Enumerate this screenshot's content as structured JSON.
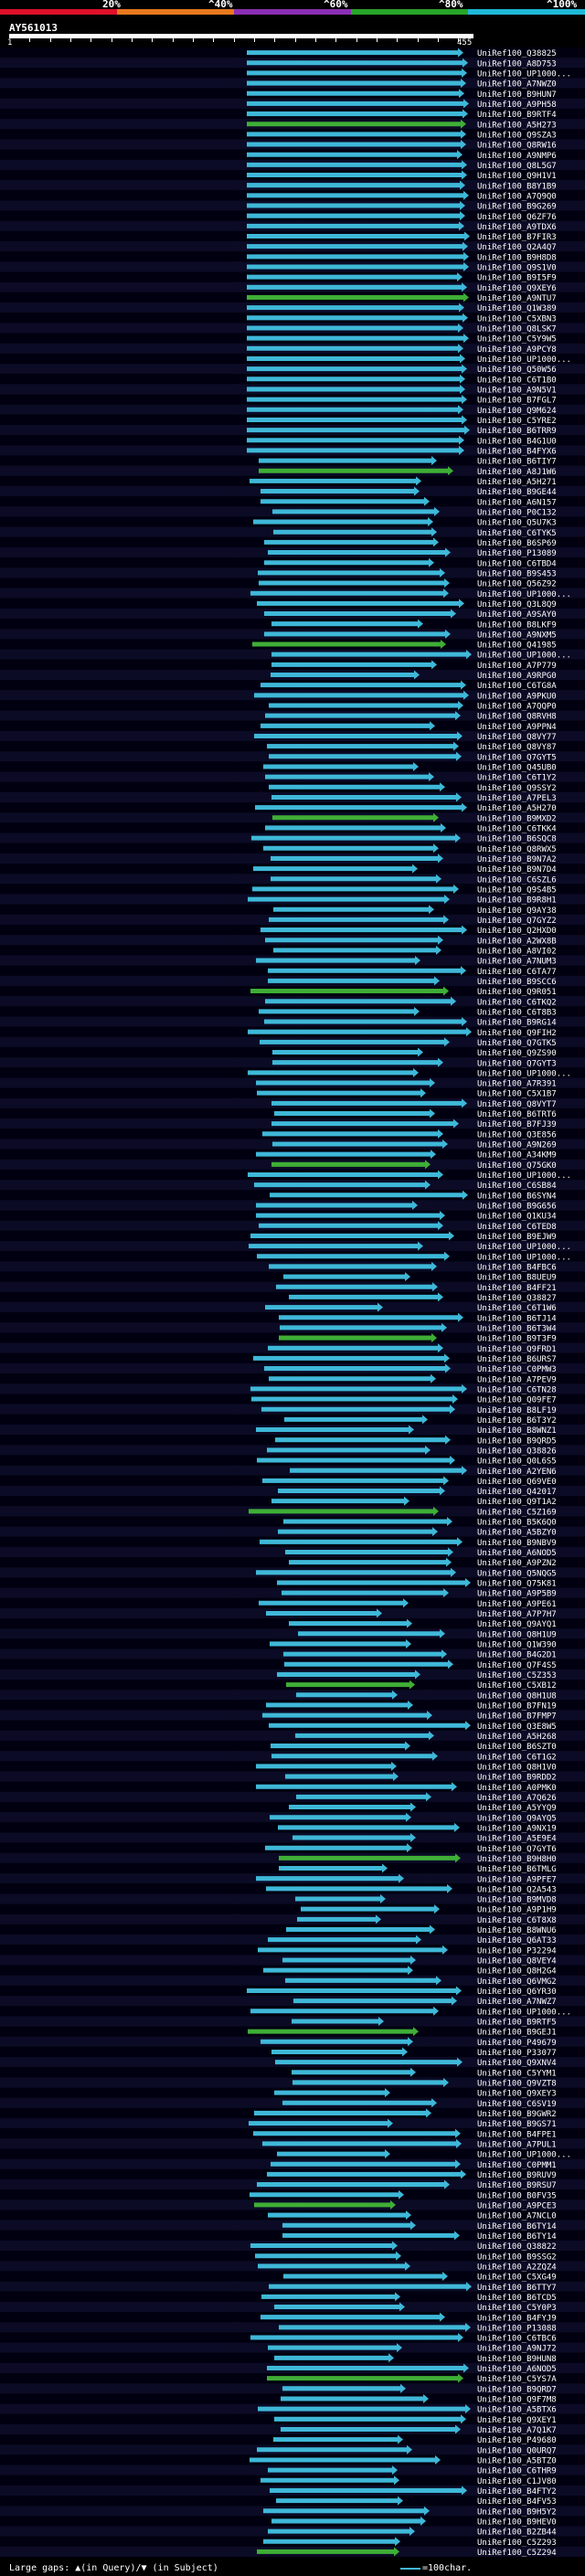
{
  "query": {
    "name": "AY561013",
    "start": "1",
    "end": "455"
  },
  "legend": {
    "labels": [
      "20%",
      "^40%",
      "^60%",
      "^80%",
      "^100%"
    ],
    "colors": [
      "#e0102a",
      "#e8781e",
      "#8b2fb5",
      "#28a42a",
      "#1fb8d8"
    ]
  },
  "colors": {
    "cyan": "#3fb8d8",
    "green": "#3fae36",
    "query": "#ffffff",
    "row_dark": "#000010",
    "row_light": "#0b0b26",
    "grid": "#33334d"
  },
  "footer": {
    "gaps_label": "Large gaps: ▲(in Query)/▼ (in Subject)",
    "scale_label": "=100char."
  },
  "hits": [
    "UniRef100_Q38825",
    "UniRef100_A8D753",
    "UniRef100_UP1000...",
    "UniRef100_A7NWZ0",
    "UniRef100_B9HUN7",
    "UniRef100_A9PH58",
    "UniRef100_B9RTF4",
    "UniRef100_A5H273",
    "UniRef100_Q9SZA3",
    "UniRef100_Q8RW16",
    "UniRef100_A9NMP6",
    "UniRef100_Q8L5G7",
    "UniRef100_Q9H1V1",
    "UniRef100_B8Y1B9",
    "UniRef100_A7Q9Q0",
    "UniRef100_B9G269",
    "UniRef100_Q6ZF76",
    "UniRef100_A9TDX6",
    "UniRef100_B7FIR3",
    "UniRef100_Q2A4Q7",
    "UniRef100_B9H8D8",
    "UniRef100_Q9S1V0",
    "UniRef100_B9I5F9",
    "UniRef100_Q9XEY6",
    "UniRef100_A9NTU7",
    "UniRef100_Q1W389",
    "UniRef100_C5XBN3",
    "UniRef100_Q8LSK7",
    "UniRef100_C5Y9W5",
    "UniRef100_A9PCY8",
    "UniRef100_UP1000...",
    "UniRef100_Q50W56",
    "UniRef100_C6T1B0",
    "UniRef100_A9N5V1",
    "UniRef100_B7FGL7",
    "UniRef100_Q9M624",
    "UniRef100_C5YRE2",
    "UniRef100_B6TRR9",
    "UniRef100_B4G1U0",
    "UniRef100_B4FYX6",
    "UniRef100_B6TIY7",
    "UniRef100_A8J1W6",
    "UniRef100_A5H271",
    "UniRef100_B9GE44",
    "UniRef100_A6N157",
    "UniRef100_P0C132",
    "UniRef100_Q5U7K3",
    "UniRef100_C6TYK5",
    "UniRef100_B6SP69",
    "UniRef100_P13089",
    "UniRef100_C6TBD4",
    "UniRef100_B9S453",
    "UniRef100_Q56Z92",
    "UniRef100_UP1000...",
    "UniRef100_Q3L8Q9",
    "UniRef100_A9SAY0",
    "UniRef100_B8LKF9",
    "UniRef100_A9NXM5",
    "UniRef100_Q41985",
    "UniRef100_UP1000...",
    "UniRef100_A7P779",
    "UniRef100_A9RPG0",
    "UniRef100_C6TG8A",
    "UniRef100_A9PKU0",
    "UniRef100_A7QQP0",
    "UniRef100_Q8RVH8",
    "UniRef100_A9PPN4",
    "UniRef100_Q8VY77",
    "UniRef100_Q8VY87",
    "UniRef100_Q7GYT5",
    "UniRef100_Q45UB0",
    "UniRef100_C6T1Y2",
    "UniRef100_Q9SSY2",
    "UniRef100_A7PEL3",
    "UniRef100_A5H270",
    "UniRef100_B9MXD2",
    "UniRef100_C6TKK4",
    "UniRef100_B6SQC8",
    "UniRef100_Q8RWX5",
    "UniRef100_B9N7A2",
    "UniRef100_B9N7D4",
    "UniRef100_C6SZL6",
    "UniRef100_Q9S4B5",
    "UniRef100_B9R8H1",
    "UniRef100_Q9AY38",
    "UniRef100_Q7GYZ2",
    "UniRef100_Q2HXD0",
    "UniRef100_A2WX8B",
    "UniRef100_A8VI02",
    "UniRef100_A7NUM3",
    "UniRef100_C6TA77",
    "UniRef100_B9SCC6",
    "UniRef100_Q9R051",
    "UniRef100_C6TKQ2",
    "UniRef100_C6T8B3",
    "UniRef100_B9RG14",
    "UniRef100_Q9FIH2",
    "UniRef100_Q7GTK5",
    "UniRef100_Q9ZS90",
    "UniRef100_Q7GYT3",
    "UniRef100_UP1000...",
    "UniRef100_A7R391",
    "UniRef100_C5X1B7",
    "UniRef100_Q8VYT7",
    "UniRef100_B6TRT6",
    "UniRef100_B7FJ39",
    "UniRef100_Q3E856",
    "UniRef100_A9N269",
    "UniRef100_A34KM9",
    "UniRef100_Q75GK0",
    "UniRef100_UP1000...",
    "UniRef100_C6SB84",
    "UniRef100_B6SYN4",
    "UniRef100_B9G656",
    "UniRef100_Q1KU34",
    "UniRef100_C6TED8",
    "UniRef100_B9EJW9",
    "UniRef100_UP1000...",
    "UniRef100_UP1000...",
    "UniRef100_B4FBC6",
    "UniRef100_B8UEU9",
    "UniRef100_B4FF21",
    "UniRef100_Q38827",
    "UniRef100_C6T1W6",
    "UniRef100_B6TJ14",
    "UniRef100_B6T3W4",
    "UniRef100_B9T3F9",
    "UniRef100_Q9FRD1",
    "UniRef100_B6URS7",
    "UniRef100_C0PMW3",
    "UniRef100_A7PEV9",
    "UniRef100_C6TN28",
    "UniRef100_Q09FE7",
    "UniRef100_B8LF19",
    "UniRef100_B6T3Y2",
    "UniRef100_B8WNZ1",
    "UniRef100_B9QRD5",
    "UniRef100_Q38826",
    "UniRef100_Q0L6S5",
    "UniRef100_A2YEN6",
    "UniRef100_Q69VE0",
    "UniRef100_Q42017",
    "UniRef100_Q9T1A2",
    "UniRef100_C5Z169",
    "UniRef100_B5K6Q0",
    "UniRef100_A5BZY0",
    "UniRef100_B9NBV9",
    "UniRef100_A6NOD5",
    "UniRef100_A9PZN2",
    "UniRef100_Q5NQG5",
    "UniRef100_Q75K81",
    "UniRef100_A9P5B9",
    "UniRef100_A9PE61",
    "UniRef100_A7P7H7",
    "UniRef100_Q9AYQ1",
    "UniRef100_Q8H1U9",
    "UniRef100_Q1W390",
    "UniRef100_B4G2D1",
    "UniRef100_Q7F4S5",
    "UniRef100_C5Z353",
    "UniRef100_C5XB12",
    "UniRef100_Q8H1U8",
    "UniRef100_B7FN19",
    "UniRef100_B7FMP7",
    "UniRef100_Q3E8W5",
    "UniRef100_A5H268",
    "UniRef100_B6SZT0",
    "UniRef100_C6T1G2",
    "UniRef100_Q8H1V0",
    "UniRef100_B9RDD2",
    "UniRef100_A0PMK0",
    "UniRef100_A7Q626",
    "UniRef100_A5YYQ9",
    "UniRef100_Q9AYQ5",
    "UniRef100_A9NX19",
    "UniRef100_A5E9E4",
    "UniRef100_Q7GYT6",
    "UniRef100_B9H8H0",
    "UniRef100_B6TMLG",
    "UniRef100_A9PFE7",
    "UniRef100_Q2A543",
    "UniRef100_B9MVD8",
    "UniRef100_A9P1H9",
    "UniRef100_C6T8X8",
    "UniRef100_B8WNU6",
    "UniRef100_Q6AT33",
    "UniRef100_P32294",
    "UniRef100_Q8VEY4",
    "UniRef100_Q8H2G4",
    "UniRef100_Q6VMG2",
    "UniRef100_Q6YR30",
    "UniRef100_A7NWZ7",
    "UniRef100_UP1000...",
    "UniRef100_B9RTF5",
    "UniRef100_B9GEJ1",
    "UniRef100_P49679",
    "UniRef100_P33077",
    "UniRef100_Q9XNV4",
    "UniRef100_C5YYM1",
    "UniRef100_Q9VZT8",
    "UniRef100_Q9XEY3",
    "UniRef100_C6SV19",
    "UniRef100_B9GWR2",
    "UniRef100_B9GS71",
    "UniRef100_B4FPE1",
    "UniRef100_A7PUL1",
    "UniRef100_UP1000...",
    "UniRef100_C0PMM1",
    "UniRef100_B9RUV9",
    "UniRef100_B9RSU7",
    "UniRef100_B0FV35",
    "UniRef100_A9PCE3",
    "UniRef100_A7NCL0",
    "UniRef100_B6TY14",
    "UniRef100_B6TY14",
    "UniRef100_Q38822",
    "UniRef100_B9SSG2",
    "UniRef100_A2ZQZ4",
    "UniRef100_C5XG49",
    "UniRef100_B6TTY7",
    "UniRef100_B6TCD5",
    "UniRef100_C5Y0P3",
    "UniRef100_B4FYJ9",
    "UniRef100_P13088",
    "UniRef100_C6TBC6",
    "UniRef100_A9NJ72",
    "UniRef100_B9HUN8",
    "UniRef100_A6NOD5",
    "UniRef100_C5YS7A",
    "UniRef100_B9QRD7",
    "UniRef100_Q9F7M8",
    "UniRef100_A5BTX6",
    "UniRef100_Q9XEY1",
    "UniRef100_A7Q1K7",
    "UniRef100_P49680",
    "UniRef100_Q0URQ7",
    "UniRef100_A5BTZ0",
    "UniRef100_C6THR9",
    "UniRef100_C1JV80",
    "UniRef100_B4FTY2",
    "UniRef100_B4FV53",
    "UniRef100_B9H5Y2",
    "UniRef100_B9HEV0",
    "UniRef100_B2ZB44",
    "UniRef100_C5Z293",
    "UniRef100_C5Z294"
  ],
  "query_ticks": [
    20,
    40,
    60,
    80,
    100,
    120,
    140,
    160,
    180,
    200,
    220,
    240,
    260,
    280,
    300,
    320,
    340,
    360,
    380,
    400,
    420,
    440
  ]
}
